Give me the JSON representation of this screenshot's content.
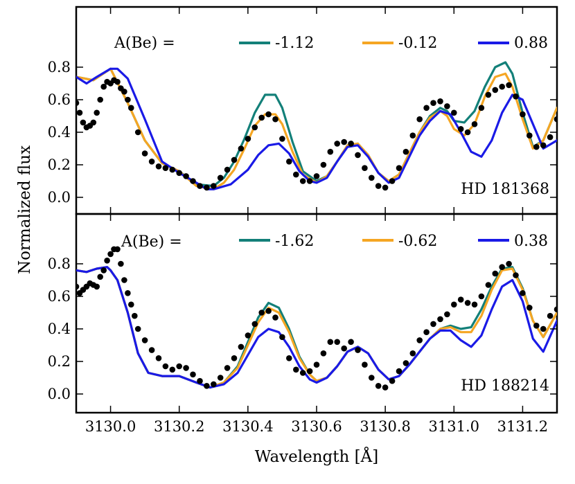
{
  "chart_data": {
    "type": "line",
    "xlabel": "Wavelength [Å]",
    "ylabel": "Normalized flux",
    "xlim": [
      3129.9,
      3131.3
    ],
    "ylim": [
      -0.1,
      1.05
    ],
    "xticks": [
      3130.0,
      3130.2,
      3130.4,
      3130.6,
      3130.8,
      3131.0,
      3131.2
    ],
    "xtick_labels": [
      "3130.0",
      "3130.2",
      "3130.4",
      "3130.6",
      "3130.8",
      "3131.0",
      "3131.2"
    ],
    "yticks": [
      0.0,
      0.2,
      0.4,
      0.6,
      0.8
    ],
    "ytick_labels": [
      "0.0",
      "0.2",
      "0.4",
      "0.6",
      "0.8"
    ],
    "legend_prefix": "A(Be) =",
    "colors": {
      "teal": "#138079",
      "orange": "#f5a623",
      "blue": "#1a1ae6",
      "observed": "#000000"
    },
    "panels": [
      {
        "label": "HD 181368",
        "series": [
          {
            "name": "-1.12",
            "color": "#138079",
            "x": [
              3129.9,
              3129.95,
              3130.0,
              3130.05,
              3130.1,
              3130.15,
              3130.2,
              3130.25,
              3130.3,
              3130.33,
              3130.36,
              3130.39,
              3130.42,
              3130.45,
              3130.48,
              3130.5,
              3130.53,
              3130.56,
              3130.6,
              3130.63,
              3130.66,
              3130.69,
              3130.72,
              3130.75,
              3130.78,
              3130.81,
              3130.84,
              3130.87,
              3130.9,
              3130.93,
              3130.96,
              3130.98,
              3131.0,
              3131.03,
              3131.06,
              3131.09,
              3131.12,
              3131.15,
              3131.17,
              3131.2,
              3131.23,
              3131.26,
              3131.3
            ],
            "y": [
              0.74,
              0.72,
              0.79,
              0.58,
              0.35,
              0.21,
              0.16,
              0.08,
              0.07,
              0.12,
              0.22,
              0.36,
              0.52,
              0.63,
              0.63,
              0.55,
              0.34,
              0.16,
              0.1,
              0.13,
              0.22,
              0.32,
              0.33,
              0.26,
              0.15,
              0.1,
              0.14,
              0.27,
              0.4,
              0.5,
              0.55,
              0.53,
              0.47,
              0.46,
              0.53,
              0.68,
              0.8,
              0.83,
              0.76,
              0.52,
              0.31,
              0.35,
              0.55
            ]
          },
          {
            "name": "-0.12",
            "color": "#f5a623",
            "x": [
              3129.9,
              3129.95,
              3130.0,
              3130.05,
              3130.1,
              3130.15,
              3130.2,
              3130.25,
              3130.3,
              3130.33,
              3130.36,
              3130.39,
              3130.42,
              3130.45,
              3130.48,
              3130.5,
              3130.53,
              3130.56,
              3130.6,
              3130.63,
              3130.66,
              3130.69,
              3130.72,
              3130.75,
              3130.78,
              3130.81,
              3130.84,
              3130.87,
              3130.9,
              3130.93,
              3130.96,
              3130.98,
              3131.0,
              3131.03,
              3131.06,
              3131.09,
              3131.12,
              3131.15,
              3131.17,
              3131.2,
              3131.23,
              3131.26,
              3131.3
            ],
            "y": [
              0.74,
              0.72,
              0.79,
              0.58,
              0.35,
              0.21,
              0.16,
              0.07,
              0.05,
              0.09,
              0.17,
              0.3,
              0.44,
              0.51,
              0.51,
              0.45,
              0.28,
              0.14,
              0.09,
              0.13,
              0.22,
              0.32,
              0.33,
              0.26,
              0.15,
              0.1,
              0.14,
              0.27,
              0.4,
              0.49,
              0.53,
              0.5,
              0.42,
              0.38,
              0.45,
              0.62,
              0.74,
              0.76,
              0.68,
              0.48,
              0.3,
              0.35,
              0.55
            ]
          },
          {
            "name": "0.88",
            "color": "#1a1ae6",
            "x": [
              3129.9,
              3129.93,
              3129.96,
              3130.0,
              3130.02,
              3130.05,
              3130.1,
              3130.15,
              3130.2,
              3130.25,
              3130.28,
              3130.3,
              3130.35,
              3130.4,
              3130.43,
              3130.46,
              3130.49,
              3130.52,
              3130.55,
              3130.58,
              3130.6,
              3130.63,
              3130.66,
              3130.69,
              3130.72,
              3130.75,
              3130.78,
              3130.81,
              3130.84,
              3130.87,
              3130.9,
              3130.93,
              3130.96,
              3130.99,
              3131.02,
              3131.05,
              3131.08,
              3131.11,
              3131.14,
              3131.17,
              3131.2,
              3131.23,
              3131.26,
              3131.3
            ],
            "y": [
              0.74,
              0.7,
              0.74,
              0.79,
              0.79,
              0.73,
              0.48,
              0.22,
              0.15,
              0.09,
              0.05,
              0.05,
              0.08,
              0.17,
              0.26,
              0.32,
              0.33,
              0.27,
              0.16,
              0.1,
              0.09,
              0.12,
              0.22,
              0.31,
              0.32,
              0.25,
              0.15,
              0.09,
              0.12,
              0.25,
              0.38,
              0.47,
              0.53,
              0.51,
              0.4,
              0.28,
              0.25,
              0.35,
              0.52,
              0.63,
              0.6,
              0.45,
              0.3,
              0.35
            ]
          }
        ],
        "observed": {
          "x": [
            3129.9,
            3129.91,
            3129.92,
            3129.93,
            3129.94,
            3129.95,
            3129.96,
            3129.97,
            3129.98,
            3129.99,
            3130.0,
            3130.01,
            3130.02,
            3130.03,
            3130.04,
            3130.05,
            3130.06,
            3130.08,
            3130.1,
            3130.12,
            3130.14,
            3130.16,
            3130.18,
            3130.2,
            3130.22,
            3130.24,
            3130.26,
            3130.28,
            3130.3,
            3130.32,
            3130.34,
            3130.36,
            3130.38,
            3130.4,
            3130.42,
            3130.44,
            3130.46,
            3130.48,
            3130.5,
            3130.52,
            3130.54,
            3130.56,
            3130.58,
            3130.6,
            3130.62,
            3130.64,
            3130.66,
            3130.68,
            3130.7,
            3130.72,
            3130.74,
            3130.76,
            3130.78,
            3130.8,
            3130.82,
            3130.84,
            3130.86,
            3130.88,
            3130.9,
            3130.92,
            3130.94,
            3130.96,
            3130.98,
            3131.0,
            3131.02,
            3131.04,
            3131.06,
            3131.08,
            3131.1,
            3131.12,
            3131.14,
            3131.16,
            3131.18,
            3131.2,
            3131.22,
            3131.24,
            3131.26,
            3131.28,
            3131.3
          ],
          "y": [
            0.58,
            0.52,
            0.46,
            0.43,
            0.44,
            0.46,
            0.52,
            0.6,
            0.68,
            0.71,
            0.7,
            0.72,
            0.71,
            0.67,
            0.65,
            0.6,
            0.55,
            0.4,
            0.27,
            0.22,
            0.19,
            0.18,
            0.17,
            0.15,
            0.13,
            0.1,
            0.07,
            0.06,
            0.07,
            0.12,
            0.17,
            0.23,
            0.3,
            0.36,
            0.43,
            0.49,
            0.51,
            0.48,
            0.36,
            0.22,
            0.14,
            0.1,
            0.1,
            0.13,
            0.2,
            0.28,
            0.33,
            0.34,
            0.33,
            0.26,
            0.18,
            0.12,
            0.07,
            0.06,
            0.1,
            0.18,
            0.28,
            0.38,
            0.48,
            0.55,
            0.58,
            0.59,
            0.56,
            0.52,
            0.42,
            0.4,
            0.45,
            0.55,
            0.63,
            0.66,
            0.68,
            0.69,
            0.62,
            0.51,
            0.38,
            0.31,
            0.32,
            0.37,
            0.48
          ]
        }
      },
      {
        "label": "HD 188214",
        "series": [
          {
            "name": "-1.62",
            "color": "#138079",
            "x": [
              3129.9,
              3129.93,
              3129.96,
              3129.99,
              3130.0,
              3130.02,
              3130.05,
              3130.08,
              3130.11,
              3130.15,
              3130.2,
              3130.25,
              3130.29,
              3130.33,
              3130.37,
              3130.4,
              3130.43,
              3130.46,
              3130.49,
              3130.52,
              3130.55,
              3130.58,
              3130.6,
              3130.63,
              3130.66,
              3130.69,
              3130.72,
              3130.75,
              3130.78,
              3130.81,
              3130.84,
              3130.87,
              3130.9,
              3130.93,
              3130.96,
              3130.99,
              3131.02,
              3131.05,
              3131.08,
              3131.11,
              3131.14,
              3131.17,
              3131.2,
              3131.23,
              3131.26,
              3131.3
            ],
            "y": [
              0.76,
              0.75,
              0.77,
              0.78,
              0.76,
              0.7,
              0.5,
              0.25,
              0.13,
              0.11,
              0.11,
              0.07,
              0.04,
              0.07,
              0.17,
              0.32,
              0.47,
              0.56,
              0.53,
              0.4,
              0.23,
              0.12,
              0.08,
              0.1,
              0.17,
              0.26,
              0.29,
              0.25,
              0.15,
              0.09,
              0.11,
              0.18,
              0.26,
              0.34,
              0.4,
              0.42,
              0.4,
              0.41,
              0.52,
              0.66,
              0.77,
              0.78,
              0.65,
              0.45,
              0.35,
              0.5
            ]
          },
          {
            "name": "-0.62",
            "color": "#f5a623",
            "x": [
              3129.9,
              3129.93,
              3129.96,
              3129.99,
              3130.0,
              3130.02,
              3130.05,
              3130.08,
              3130.11,
              3130.15,
              3130.2,
              3130.25,
              3130.29,
              3130.33,
              3130.37,
              3130.4,
              3130.43,
              3130.46,
              3130.49,
              3130.52,
              3130.55,
              3130.58,
              3130.6,
              3130.63,
              3130.66,
              3130.69,
              3130.72,
              3130.75,
              3130.78,
              3130.81,
              3130.84,
              3130.87,
              3130.9,
              3130.93,
              3130.96,
              3130.99,
              3131.02,
              3131.05,
              3131.08,
              3131.11,
              3131.14,
              3131.17,
              3131.2,
              3131.23,
              3131.26,
              3131.3
            ],
            "y": [
              0.76,
              0.75,
              0.77,
              0.78,
              0.76,
              0.7,
              0.5,
              0.25,
              0.13,
              0.11,
              0.11,
              0.07,
              0.04,
              0.07,
              0.16,
              0.3,
              0.44,
              0.53,
              0.5,
              0.38,
              0.22,
              0.12,
              0.08,
              0.1,
              0.17,
              0.26,
              0.29,
              0.25,
              0.15,
              0.09,
              0.11,
              0.18,
              0.26,
              0.34,
              0.4,
              0.41,
              0.38,
              0.38,
              0.48,
              0.64,
              0.76,
              0.77,
              0.64,
              0.45,
              0.35,
              0.5
            ]
          },
          {
            "name": "0.38",
            "color": "#1a1ae6",
            "x": [
              3129.9,
              3129.93,
              3129.96,
              3129.99,
              3130.0,
              3130.02,
              3130.05,
              3130.08,
              3130.11,
              3130.15,
              3130.2,
              3130.25,
              3130.29,
              3130.33,
              3130.37,
              3130.4,
              3130.43,
              3130.46,
              3130.49,
              3130.52,
              3130.55,
              3130.58,
              3130.6,
              3130.63,
              3130.66,
              3130.69,
              3130.72,
              3130.75,
              3130.78,
              3130.81,
              3130.84,
              3130.87,
              3130.9,
              3130.93,
              3130.96,
              3130.99,
              3131.02,
              3131.05,
              3131.08,
              3131.11,
              3131.14,
              3131.17,
              3131.2,
              3131.23,
              3131.26,
              3131.3
            ],
            "y": [
              0.76,
              0.75,
              0.77,
              0.78,
              0.76,
              0.7,
              0.5,
              0.25,
              0.13,
              0.11,
              0.11,
              0.07,
              0.04,
              0.06,
              0.13,
              0.24,
              0.35,
              0.4,
              0.38,
              0.29,
              0.17,
              0.09,
              0.07,
              0.1,
              0.17,
              0.26,
              0.29,
              0.25,
              0.15,
              0.09,
              0.11,
              0.18,
              0.26,
              0.34,
              0.39,
              0.39,
              0.33,
              0.29,
              0.36,
              0.52,
              0.66,
              0.7,
              0.57,
              0.34,
              0.26,
              0.45
            ]
          }
        ],
        "observed": {
          "x": [
            3129.9,
            3129.91,
            3129.92,
            3129.93,
            3129.94,
            3129.95,
            3129.96,
            3129.97,
            3129.98,
            3129.99,
            3130.0,
            3130.01,
            3130.02,
            3130.03,
            3130.04,
            3130.05,
            3130.06,
            3130.07,
            3130.08,
            3130.1,
            3130.12,
            3130.14,
            3130.16,
            3130.18,
            3130.2,
            3130.22,
            3130.24,
            3130.26,
            3130.28,
            3130.3,
            3130.32,
            3130.34,
            3130.36,
            3130.38,
            3130.4,
            3130.42,
            3130.44,
            3130.46,
            3130.48,
            3130.5,
            3130.52,
            3130.54,
            3130.56,
            3130.58,
            3130.6,
            3130.62,
            3130.64,
            3130.66,
            3130.68,
            3130.7,
            3130.72,
            3130.74,
            3130.76,
            3130.78,
            3130.8,
            3130.82,
            3130.84,
            3130.86,
            3130.88,
            3130.9,
            3130.92,
            3130.94,
            3130.96,
            3130.98,
            3131.0,
            3131.02,
            3131.04,
            3131.06,
            3131.08,
            3131.1,
            3131.12,
            3131.14,
            3131.16,
            3131.18,
            3131.2,
            3131.22,
            3131.24,
            3131.26,
            3131.28,
            3131.3
          ],
          "y": [
            0.66,
            0.62,
            0.64,
            0.66,
            0.68,
            0.67,
            0.66,
            0.72,
            0.76,
            0.82,
            0.86,
            0.89,
            0.89,
            0.8,
            0.7,
            0.62,
            0.55,
            0.48,
            0.4,
            0.33,
            0.27,
            0.22,
            0.17,
            0.15,
            0.17,
            0.16,
            0.12,
            0.08,
            0.05,
            0.06,
            0.1,
            0.16,
            0.22,
            0.29,
            0.36,
            0.43,
            0.5,
            0.51,
            0.47,
            0.35,
            0.22,
            0.15,
            0.13,
            0.14,
            0.18,
            0.25,
            0.32,
            0.32,
            0.28,
            0.32,
            0.27,
            0.18,
            0.1,
            0.05,
            0.04,
            0.08,
            0.14,
            0.19,
            0.25,
            0.33,
            0.38,
            0.43,
            0.46,
            0.49,
            0.55,
            0.58,
            0.56,
            0.55,
            0.6,
            0.67,
            0.74,
            0.78,
            0.8,
            0.73,
            0.62,
            0.53,
            0.42,
            0.4,
            0.48,
            0.52
          ]
        }
      }
    ]
  }
}
